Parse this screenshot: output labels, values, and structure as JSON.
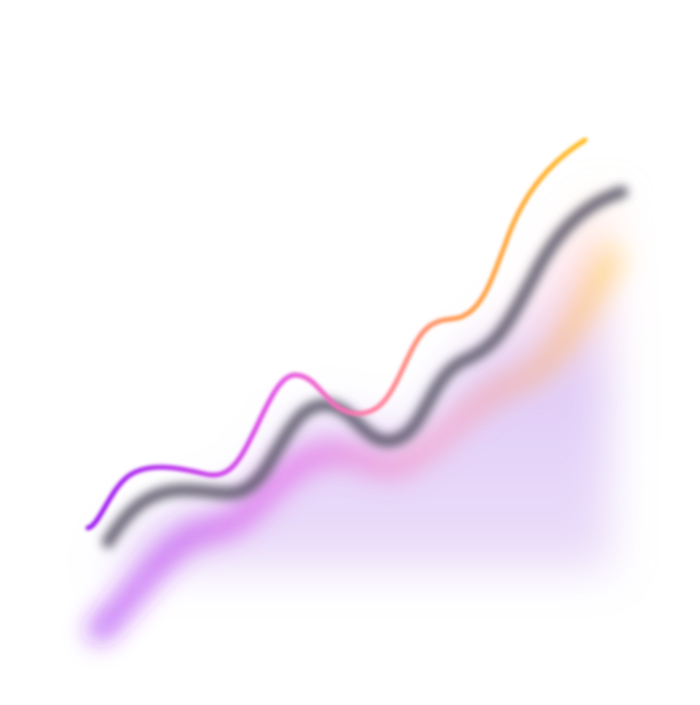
{
  "illustration": {
    "subject": "wavy-rising-line",
    "colors": {
      "purple": "#9b1cf2",
      "magenta": "#e455e6",
      "pink": "#ff7fa8",
      "orange": "#ff9a52",
      "yellow": "#ffc21f",
      "shadow": "#4d4a5c",
      "fill_lavender": "#c9a4f0",
      "fill_pink": "#ffb8cf",
      "fill_yellow": "#ffe27a"
    }
  }
}
